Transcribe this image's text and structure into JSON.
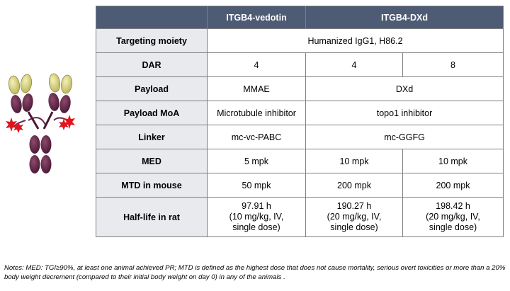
{
  "table": {
    "headers": {
      "col1": "ITGB4-vedotin",
      "col2": "ITGB4-DXd"
    },
    "rows": {
      "targeting": {
        "label": "Targeting moiety",
        "value": "Humanized IgG1, H86.2"
      },
      "dar": {
        "label": "DAR",
        "v1": "4",
        "v2": "4",
        "v3": "8"
      },
      "payload": {
        "label": "Payload",
        "v1": "MMAE",
        "v2": "DXd"
      },
      "moa": {
        "label": "Payload MoA",
        "v1": "Microtubule inhibitor",
        "v2": "topo1 inhibitor"
      },
      "linker": {
        "label": "Linker",
        "v1": "mc-vc-PABC",
        "v2": "mc-GGFG"
      },
      "med": {
        "label": "MED",
        "v1": "5 mpk",
        "v2": "10 mpk",
        "v3": "10 mpk"
      },
      "mtd": {
        "label": "MTD in mouse",
        "v1": "50 mpk",
        "v2": "200 mpk",
        "v3": "200 mpk"
      },
      "halflife": {
        "label": "Half-life in rat",
        "v1": [
          "97.91 h",
          "(10 mg/kg, IV,",
          "single dose)"
        ],
        "v2": [
          "190.27 h",
          "(20 mg/kg, IV,",
          "single dose)"
        ],
        "v3": [
          "198.42 h",
          "(20 mg/kg, IV,",
          "single dose)"
        ]
      }
    }
  },
  "notes": "Notes: MED: TGI≥90%, at least one animal achieved PR; MTD is defined as the highest dose that does not cause mortality, serious overt toxicities or more than a 20% body weight decrement (compared to their initial body weight on day 0) in any of the animals .",
  "colors": {
    "header_bg": "#4e5b75",
    "label_bg": "#e9eaee",
    "fab_yellow": "#d8d47c",
    "antibody_purple": "#5e2444",
    "payload_red": "#e0141c"
  }
}
